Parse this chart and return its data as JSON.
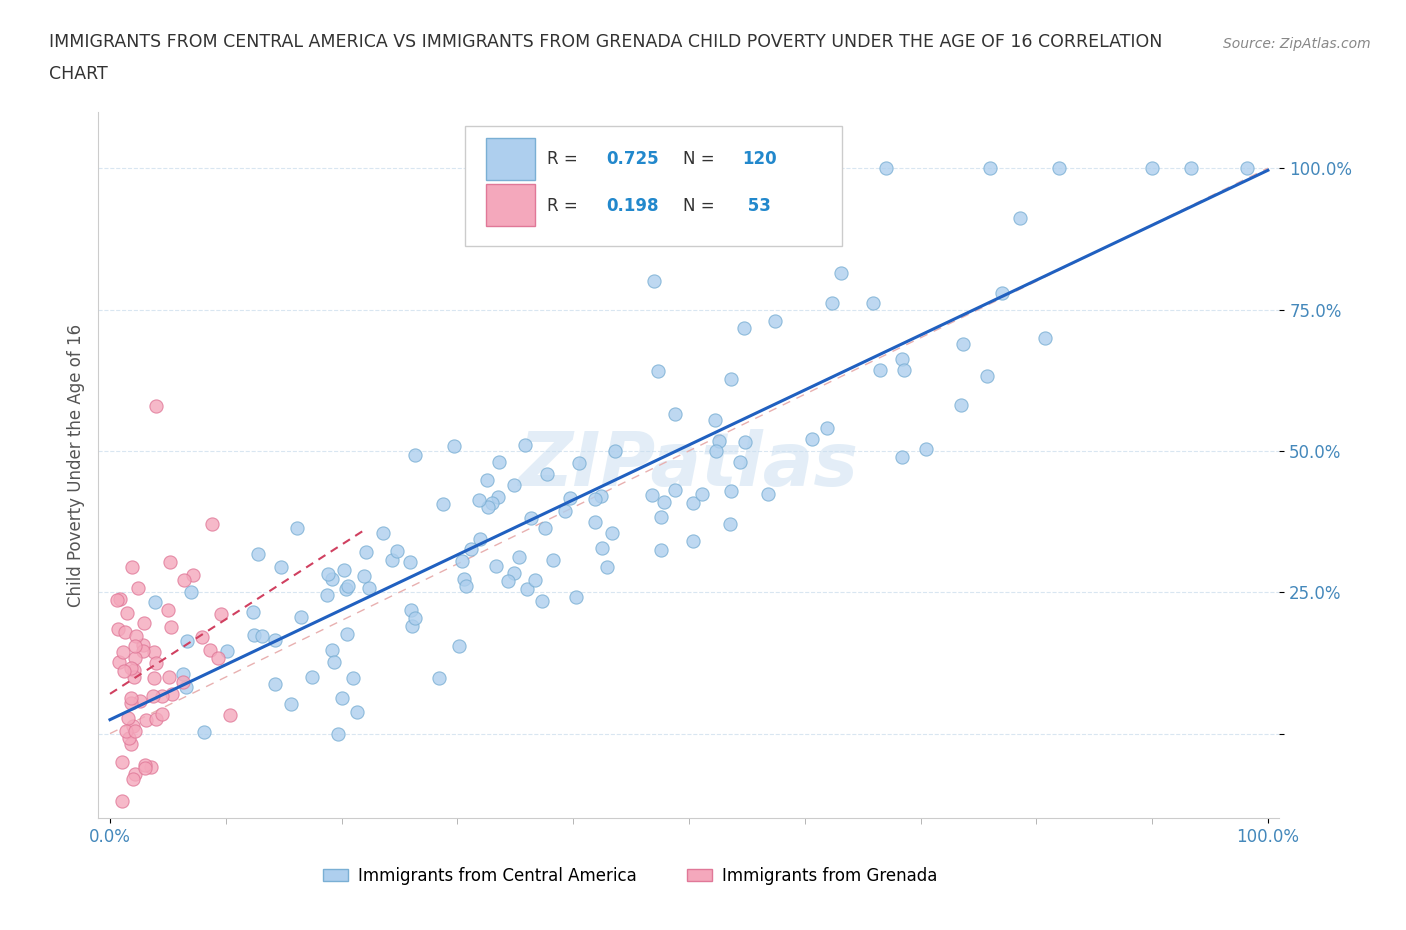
{
  "title_line1": "IMMIGRANTS FROM CENTRAL AMERICA VS IMMIGRANTS FROM GRENADA CHILD POVERTY UNDER THE AGE OF 16 CORRELATION",
  "title_line2": "CHART",
  "source": "Source: ZipAtlas.com",
  "ylabel": "Child Poverty Under the Age of 16",
  "blue_R": 0.725,
  "blue_N": 120,
  "pink_R": 0.198,
  "pink_N": 53,
  "blue_color": "#aecfee",
  "blue_edge": "#7aafd4",
  "pink_color": "#f4a8bc",
  "pink_edge": "#e07898",
  "blue_line_color": "#2060c0",
  "pink_line_color": "#d04060",
  "diagonal_color": "#e8b0b0",
  "watermark": "ZIPatlas",
  "legend_label_blue": "Immigrants from Central America",
  "legend_label_pink": "Immigrants from Grenada"
}
